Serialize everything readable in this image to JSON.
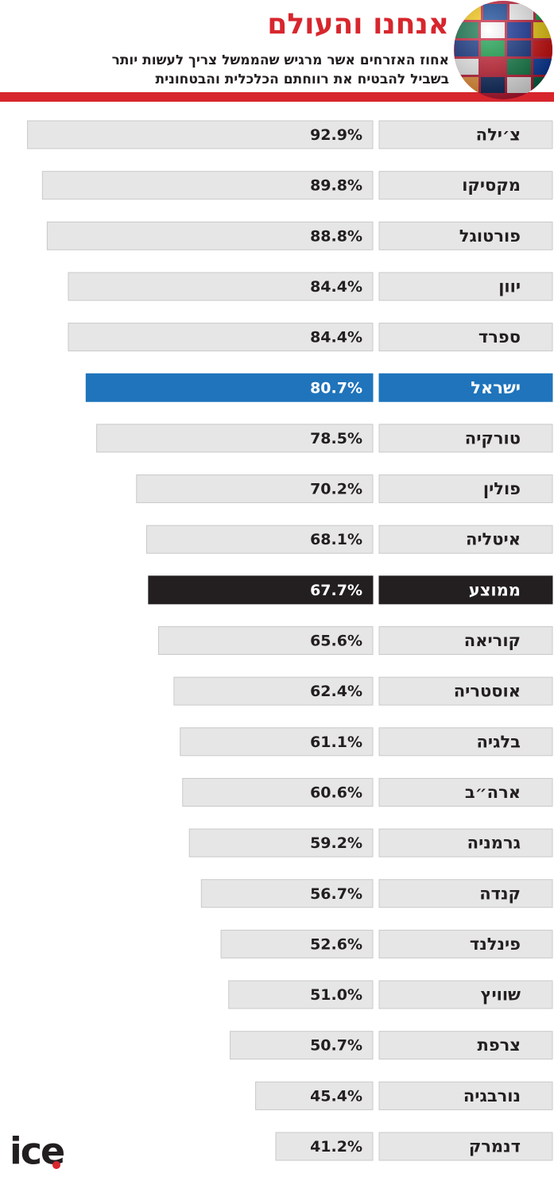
{
  "chart_data": {
    "type": "bar",
    "title": "אנחנו והעולם",
    "subtitle": [
      "אחוז האזרחים אשר מרגיש שהממשל צריך לעשות יותר",
      "בשביל להבטיח את רווחתם הכלכלית והבטחונית"
    ],
    "logo": "ice",
    "categories": [
      "צ׳ילה",
      "מקסיקו",
      "פורטוגל",
      "יוון",
      "ספרד",
      "ישראל",
      "טורקיה",
      "פולין",
      "איטליה",
      "ממוצע",
      "קוריאה",
      "אוסטריה",
      "בלגיה",
      "ארה״ב",
      "גרמניה",
      "קנדה",
      "פינלנד",
      "שוויץ",
      "צרפת",
      "נורבגיה",
      "דנמרק"
    ],
    "values": [
      92.9,
      89.8,
      88.8,
      84.4,
      84.4,
      80.7,
      78.5,
      70.2,
      68.1,
      67.7,
      65.6,
      62.4,
      61.1,
      60.6,
      59.2,
      56.7,
      52.6,
      51.0,
      50.7,
      45.4,
      41.2
    ],
    "value_labels": [
      "92.9%",
      "89.8%",
      "88.8%",
      "84.4%",
      "84.4%",
      "80.7%",
      "78.5%",
      "70.2%",
      "68.1%",
      "67.7%",
      "65.6%",
      "62.4%",
      "61.1%",
      "60.6%",
      "59.2%",
      "56.7%",
      "52.6%",
      "51.0%",
      "50.7%",
      "45.4%",
      "41.2%"
    ],
    "color": "#e6e6e6",
    "bar_colors": [
      "#e6e6e6",
      "#e6e6e6",
      "#e6e6e6",
      "#e6e6e6",
      "#e6e6e6",
      "#1f74bb",
      "#e6e6e6",
      "#e6e6e6",
      "#e6e6e6",
      "#231f20",
      "#e6e6e6",
      "#e6e6e6",
      "#e6e6e6",
      "#e6e6e6",
      "#e6e6e6",
      "#e6e6e6",
      "#e6e6e6",
      "#e6e6e6",
      "#e6e6e6",
      "#e6e6e6",
      "#e6e6e6"
    ],
    "xlim": [
      21,
      93
    ]
  }
}
